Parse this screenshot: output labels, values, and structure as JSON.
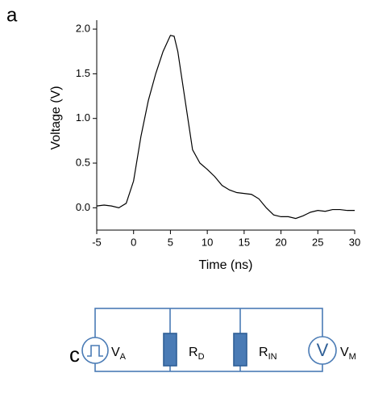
{
  "chart_data": {
    "type": "line",
    "xlabel": "Time (ns)",
    "ylabel": "Voltage (V)",
    "color": "#000000",
    "x": [
      -5,
      -4,
      -3,
      -2,
      -1,
      0,
      1,
      2,
      3,
      4,
      5,
      5.5,
      6,
      7,
      8,
      9,
      10,
      11,
      12,
      13,
      14,
      15,
      16,
      17,
      18,
      19,
      20,
      21,
      22,
      23,
      24,
      25,
      26,
      27,
      28,
      29,
      30
    ],
    "values": [
      0.02,
      0.03,
      0.02,
      0.0,
      0.05,
      0.3,
      0.8,
      1.2,
      1.5,
      1.75,
      1.93,
      1.92,
      1.75,
      1.2,
      0.65,
      0.5,
      0.43,
      0.35,
      0.25,
      0.2,
      0.17,
      0.16,
      0.15,
      0.1,
      0.0,
      -0.08,
      -0.1,
      -0.1,
      -0.12,
      -0.09,
      -0.05,
      -0.03,
      -0.04,
      -0.02,
      -0.02,
      -0.03,
      -0.03
    ],
    "xlim": [
      -5,
      30
    ],
    "xticks": [
      -5,
      0,
      5,
      10,
      15,
      20,
      25,
      30
    ],
    "ylim": [
      -0.25,
      2.1
    ],
    "yticks": [
      {
        "value": 0,
        "label": "0.0"
      },
      0.5,
      {
        "value": 1,
        "label": "1.0"
      },
      1.5,
      {
        "value": 2,
        "label": "2.0"
      }
    ]
  },
  "panel_labels": [
    "a",
    "c"
  ],
  "circuit": {
    "components": [
      {
        "main": "V",
        "sub": "A"
      },
      {
        "main": "R",
        "sub": "D"
      },
      {
        "main": "R",
        "sub": "IN"
      },
      {
        "main": "V",
        "sub": "M"
      }
    ],
    "meter_symbol": "V"
  }
}
